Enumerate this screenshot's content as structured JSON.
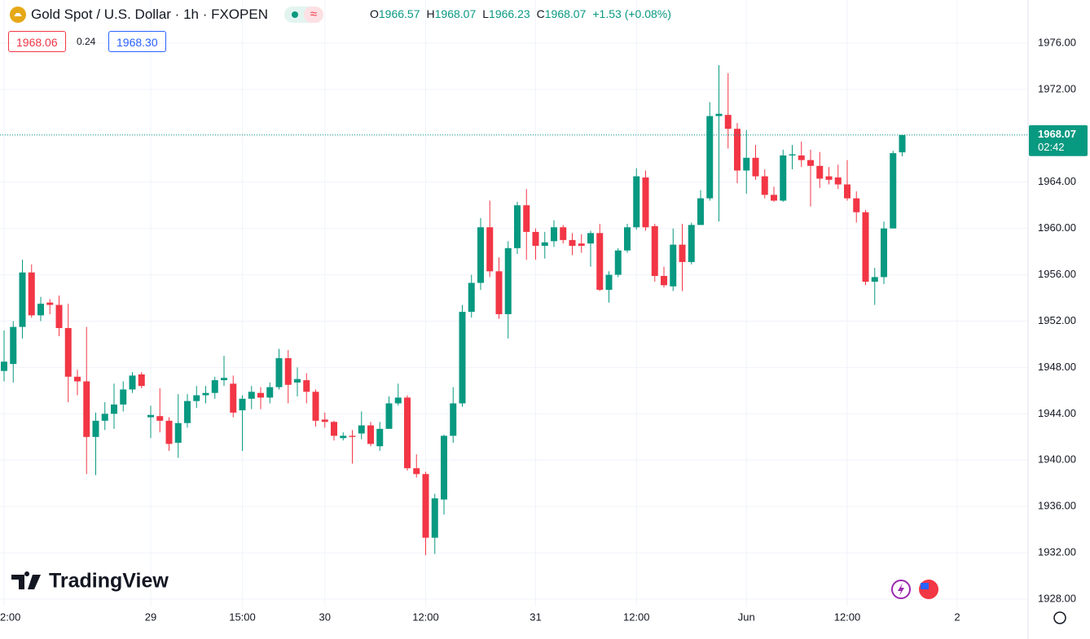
{
  "chart_data": {
    "type": "candlestick",
    "header": {
      "title": "Gold Spot / U.S. Dollar · 1h · FXOPEN",
      "ohlc": [
        {
          "label": "O",
          "value": "1966.57"
        },
        {
          "label": "H",
          "value": "1968.07"
        },
        {
          "label": "L",
          "value": "1966.23"
        },
        {
          "label": "C",
          "value": "1968.07"
        }
      ],
      "change": "+1.53 (+0.08%)",
      "bid": "1968.06",
      "spread": "0.24",
      "ask": "1968.30"
    },
    "watermark": "TradingView",
    "up_color": "#089981",
    "down_color": "#f23645",
    "open": [
      1947.7,
      1948.3,
      1951.5,
      1956.2,
      1952.5,
      1953.6,
      1953.4,
      1951.4,
      1947.2,
      1946.8,
      1942,
      1943.4,
      1944,
      1944.8,
      1946.1,
      1947.4,
      1943.7,
      1943.8,
      1943.4,
      1941.5,
      1943.2,
      1945.1,
      1945.6,
      1945.8,
      1946.9,
      1946.6,
      1944.3,
      1945.3,
      1945.8,
      1945.4,
      1946.3,
      1948.8,
      1946.7,
      1946.9,
      1945.9,
      1943.5,
      1943.3,
      1941.9,
      1942.1,
      1942.3,
      1943,
      1941.2,
      1942.7,
      1944.9,
      1945.4,
      1939.3,
      1938.8,
      1933.3,
      1936.6,
      1942.1,
      1944.9,
      1952.8,
      1955.3,
      1960.1,
      1956.3,
      1952.6,
      1958.3,
      1962,
      1959.7,
      1958.5,
      1958.9,
      1960.1,
      1959,
      1958.7,
      1958.7,
      1959.6,
      1954.7,
      1956,
      1958.1,
      1960.1,
      1964.4,
      1960.2,
      1955.9,
      1955,
      1958.6,
      1957.1,
      1960.3,
      1962.6,
      1969.7,
      1969.8,
      1968.6,
      1965,
      1966.1,
      1964.5,
      1962.9,
      1962.4,
      1966.3,
      1966.3,
      1965.9,
      1965.4,
      1964.5,
      1964.4,
      1963.8,
      1962.6,
      1961.4,
      1955.4,
      1955.8,
      1960,
      1966.57
    ],
    "high": [
      1951.2,
      1952,
      1957.3,
      1956.9,
      1954.1,
      1953.9,
      1954.2,
      1953.5,
      1947.8,
      1951.5,
      1944.1,
      1945,
      1946.6,
      1946.8,
      1947.6,
      1947.6,
      1944.7,
      1946.2,
      1943.7,
      1945.7,
      1945.7,
      1946.4,
      1946.4,
      1947.2,
      1949,
      1947.3,
      1945.6,
      1946.4,
      1946.3,
      1946.7,
      1949.6,
      1949.5,
      1948,
      1947.5,
      1946.1,
      1944.1,
      1943.4,
      1942.4,
      1942.6,
      1944.2,
      1943.3,
      1943.3,
      1945.5,
      1946.6,
      1945.6,
      1940.5,
      1939,
      1937.1,
      1942.2,
      1946.3,
      1953.4,
      1956,
      1960.9,
      1962.4,
      1957.5,
      1958.9,
      1962.3,
      1963.4,
      1960,
      1959.7,
      1960.7,
      1960.3,
      1959.6,
      1959.5,
      1959.8,
      1960.4,
      1956.3,
      1958.3,
      1960.4,
      1965.2,
      1965,
      1960.4,
      1956.7,
      1960,
      1960.4,
      1960.5,
      1963.3,
      1970.9,
      1974.1,
      1973.4,
      1969.1,
      1968.5,
      1967.2,
      1965.1,
      1963.6,
      1966.8,
      1967.2,
      1967.5,
      1966.8,
      1966.6,
      1965.3,
      1965.5,
      1965.9,
      1963.2,
      1961.6,
      1956.6,
      1960.6,
      1966.7,
      1968.07
    ],
    "low": [
      1946.8,
      1946.7,
      1950.5,
      1952.3,
      1952,
      1952.6,
      1950.7,
      1945,
      1945.6,
      1938.8,
      1938.7,
      1942.6,
      1942.7,
      1944.2,
      1945.8,
      1946.2,
      1941.9,
      1942.4,
      1940.8,
      1940.2,
      1942.8,
      1944.5,
      1944.9,
      1945.3,
      1946.4,
      1943.7,
      1940.8,
      1944.4,
      1944.4,
      1944.9,
      1946.1,
      1944.9,
      1945.5,
      1944.9,
      1942.9,
      1942.8,
      1941.7,
      1941.7,
      1939.7,
      1941.8,
      1941.2,
      1940.8,
      1942.7,
      1944.7,
      1939.1,
      1938.5,
      1931.8,
      1931.9,
      1935.3,
      1941.5,
      1944.6,
      1952.3,
      1954.7,
      1955.8,
      1952.2,
      1950.5,
      1957.8,
      1957.3,
      1957.3,
      1957.4,
      1958.4,
      1958.7,
      1957.7,
      1957.9,
      1956.7,
      1954.6,
      1953.6,
      1955.8,
      1957.9,
      1959.9,
      1959.8,
      1955.4,
      1954.9,
      1954.6,
      1954.6,
      1956.9,
      1960.3,
      1962.4,
      1960.6,
      1966.9,
      1963.9,
      1963,
      1964.2,
      1962.6,
      1962.3,
      1962.3,
      1965.1,
      1965.3,
      1961.9,
      1963.5,
      1963.8,
      1963.4,
      1962.4,
      1960.5,
      1955.1,
      1953.4,
      1955.2,
      1960,
      1966.23
    ],
    "close": [
      1948.5,
      1951.5,
      1956.2,
      1952.5,
      1953.5,
      1953.4,
      1951.4,
      1947.2,
      1946.8,
      1942,
      1943.4,
      1944,
      1944.8,
      1946.1,
      1947.3,
      1946.4,
      1943.9,
      1943.4,
      1941.4,
      1943.2,
      1945.1,
      1945.6,
      1945.8,
      1946.9,
      1947.1,
      1944.1,
      1945.3,
      1945.9,
      1945.4,
      1946.3,
      1948.8,
      1946.5,
      1947,
      1945.9,
      1943.4,
      1943.3,
      1942.1,
      1942.1,
      1942,
      1943,
      1941.4,
      1942.7,
      1944.9,
      1945.4,
      1939.3,
      1938.8,
      1933.3,
      1936.7,
      1942.1,
      1944.9,
      1952.8,
      1955.3,
      1960.1,
      1956.3,
      1952.6,
      1958.3,
      1962,
      1959.7,
      1958.5,
      1958.8,
      1960.1,
      1959,
      1958.5,
      1958.5,
      1959.6,
      1954.7,
      1956,
      1958.1,
      1960.1,
      1964.5,
      1960.1,
      1955.9,
      1955.1,
      1958.6,
      1957.1,
      1960.3,
      1962.6,
      1969.7,
      1969.9,
      1968.6,
      1965,
      1966.1,
      1964.5,
      1962.9,
      1962.4,
      1966.3,
      1966.4,
      1965.9,
      1965.4,
      1964.3,
      1964.2,
      1963.8,
      1962.6,
      1961.4,
      1955.4,
      1955.8,
      1960,
      1966.5,
      1968.07
    ],
    "last_price": {
      "value": 1968.07,
      "countdown": "02:42"
    },
    "xticks": [
      {
        "value": 0,
        "label": "2:00"
      },
      {
        "value": 16,
        "label": "29"
      },
      {
        "value": 26,
        "label": "15:00"
      },
      {
        "value": 35,
        "label": "30"
      },
      {
        "value": 46,
        "label": "12:00"
      },
      {
        "value": 58,
        "label": "31"
      },
      {
        "value": 69,
        "label": "12:00"
      },
      {
        "value": 81,
        "label": "Jun"
      },
      {
        "value": 92,
        "label": "12:00"
      },
      {
        "value": 104,
        "label": "2"
      }
    ],
    "ylim": [
      1927.37,
      1979.72
    ],
    "yticks": [
      {
        "value": 1928,
        "label": "1928.00"
      },
      {
        "value": 1932,
        "label": "1932.00"
      },
      {
        "value": 1936,
        "label": "1936.00"
      },
      {
        "value": 1940,
        "label": "1940.00"
      },
      {
        "value": 1944,
        "label": "1944.00"
      },
      {
        "value": 1948,
        "label": "1948.00"
      },
      {
        "value": 1952,
        "label": "1952.00"
      },
      {
        "value": 1956,
        "label": "1956.00"
      },
      {
        "value": 1960,
        "label": "1960.00"
      },
      {
        "value": 1964,
        "label": "1964.00"
      },
      {
        "value": 1968,
        "label": "1968.00"
      },
      {
        "value": 1972,
        "label": "1972.00"
      },
      {
        "value": 1976,
        "label": "1976.00"
      }
    ],
    "grid": true
  }
}
